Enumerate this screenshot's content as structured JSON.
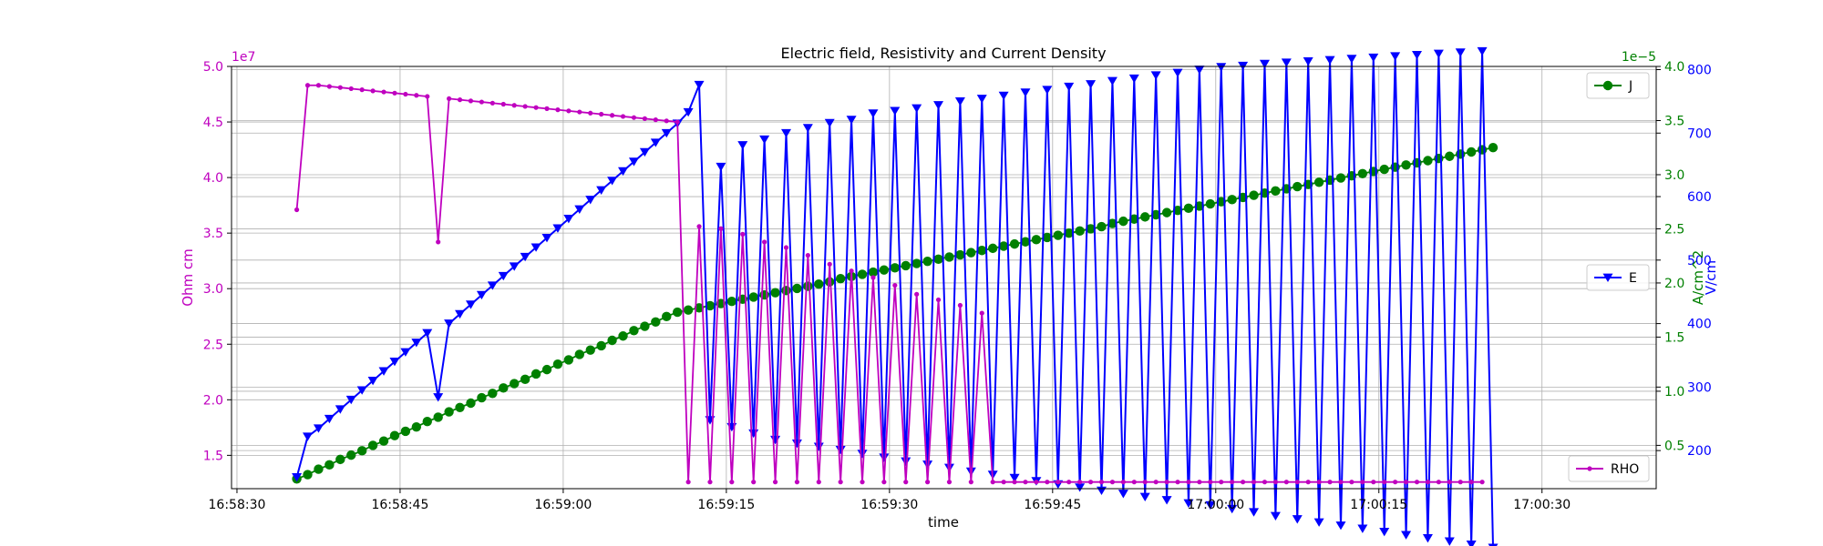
{
  "chart_data": {
    "type": "line",
    "title": "Electric field, Resistivity and Current Density",
    "xlabel": "time",
    "x_ticks": [
      "16:58:30",
      "16:58:45",
      "16:59:00",
      "16:59:15",
      "16:59:30",
      "16:59:45",
      "17:00:00",
      "17:00:15",
      "17:00:30"
    ],
    "x_tick_seconds": [
      0,
      15,
      30,
      45,
      60,
      75,
      90,
      105,
      120
    ],
    "xlim_seconds": [
      -0.5,
      130.5
    ],
    "x_start_seconds": 5.5,
    "x_step_seconds": 1,
    "grid": true,
    "colors": {
      "rho": "#bf00bf",
      "e": "#0000ff",
      "j": "#008000"
    },
    "axes": {
      "rho": {
        "ylabel": "Ohm cm",
        "multiplier": "1e7",
        "ylim": [
          1.2,
          5.0
        ],
        "ticks": [
          1.5,
          2.0,
          2.5,
          3.0,
          3.5,
          4.0,
          4.5,
          5.0
        ],
        "tick_labels": [
          "1.5",
          "2.0",
          "2.5",
          "3.0",
          "3.5",
          "4.0",
          "4.5",
          "5.0"
        ]
      },
      "e": {
        "ylabel": "V/cm",
        "ylim": [
          140,
          805
        ],
        "ticks": [
          200,
          300,
          400,
          500,
          600,
          700,
          800
        ],
        "tick_labels": [
          "200",
          "300",
          "400",
          "500",
          "600",
          "700",
          "800"
        ]
      },
      "j": {
        "ylabel": "A/cm^2",
        "multiplier": "1e−5",
        "ylim": [
          0.1,
          4.0
        ],
        "ticks": [
          0.5,
          1.0,
          1.5,
          2.0,
          2.5,
          3.0,
          3.5,
          4.0
        ],
        "tick_labels": [
          "0.5",
          "1.0",
          "1.5",
          "2.0",
          "2.5",
          "3.0",
          "3.5",
          "4.0"
        ]
      }
    },
    "series": [
      {
        "name": "RHO",
        "axis": "rho",
        "marker": "dot",
        "values": [
          3.71,
          4.83,
          4.83,
          4.82,
          4.81,
          4.8,
          4.79,
          4.78,
          4.77,
          4.76,
          4.75,
          4.74,
          4.73,
          3.42,
          4.71,
          4.7,
          4.69,
          4.68,
          4.67,
          4.66,
          4.65,
          4.64,
          4.63,
          4.62,
          4.61,
          4.6,
          4.59,
          4.58,
          4.57,
          4.56,
          4.55,
          4.54,
          4.53,
          4.52,
          4.51,
          4.5,
          1.26,
          3.56,
          1.26,
          3.54,
          1.26,
          3.49,
          1.26,
          3.42,
          1.26,
          3.37,
          1.26,
          3.3,
          1.26,
          3.22,
          1.26,
          3.16,
          1.26,
          3.1,
          1.26,
          3.03,
          1.26,
          2.95,
          1.26,
          2.9,
          1.26,
          2.85,
          1.26,
          2.78,
          1.26,
          1.26,
          1.26,
          1.26,
          1.26,
          1.26,
          1.26,
          1.26,
          1.26,
          1.26,
          1.26,
          1.26,
          1.26,
          1.26,
          1.26,
          1.26,
          1.26,
          1.26,
          1.26,
          1.26,
          1.26,
          1.26,
          1.26,
          1.26,
          1.26,
          1.26,
          1.26,
          1.26,
          1.26,
          1.26,
          1.26,
          1.26,
          1.26,
          1.26,
          1.26,
          1.26,
          1.26,
          1.26,
          1.26,
          1.26,
          1.26,
          1.26,
          1.26,
          1.26,
          1.26,
          1.26
        ]
      },
      {
        "name": "E",
        "axis": "e",
        "marker": "triangle-down",
        "values": [
          158,
          222,
          235,
          250,
          265,
          280,
          295,
          310,
          325,
          340,
          355,
          370,
          385,
          284,
          400,
          415,
          430,
          445,
          460,
          475,
          490,
          505,
          520,
          535,
          550,
          565,
          580,
          595,
          610,
          625,
          640,
          655,
          670,
          685,
          700,
          715,
          733,
          776,
          248,
          647,
          237,
          681,
          227,
          690,
          217,
          700,
          211,
          708,
          206,
          716,
          201,
          721,
          195,
          731,
          189,
          735,
          183,
          739,
          178,
          744,
          173,
          750,
          167,
          754,
          162,
          759,
          157,
          764,
          152,
          768,
          147,
          773,
          142,
          777,
          137,
          782,
          132,
          786,
          127,
          791,
          122,
          795,
          117,
          800,
          114,
          804,
          108,
          806,
          103,
          809,
          97,
          811,
          92,
          813,
          87,
          815,
          82,
          817,
          77,
          819,
          72,
          821,
          67,
          823,
          62,
          825,
          57,
          827,
          52,
          829,
          47
        ]
      },
      {
        "name": "J",
        "axis": "j",
        "marker": "circle",
        "values": [
          0.19,
          0.23,
          0.28,
          0.32,
          0.37,
          0.41,
          0.45,
          0.5,
          0.54,
          0.59,
          0.63,
          0.67,
          0.72,
          0.76,
          0.81,
          0.85,
          0.89,
          0.94,
          0.98,
          1.03,
          1.07,
          1.11,
          1.16,
          1.2,
          1.25,
          1.29,
          1.34,
          1.38,
          1.42,
          1.47,
          1.51,
          1.56,
          1.6,
          1.64,
          1.69,
          1.73,
          1.75,
          1.77,
          1.79,
          1.81,
          1.83,
          1.85,
          1.87,
          1.89,
          1.91,
          1.93,
          1.95,
          1.97,
          1.99,
          2.01,
          2.04,
          2.06,
          2.08,
          2.1,
          2.12,
          2.14,
          2.16,
          2.18,
          2.2,
          2.22,
          2.24,
          2.26,
          2.28,
          2.3,
          2.32,
          2.34,
          2.36,
          2.38,
          2.4,
          2.42,
          2.44,
          2.46,
          2.48,
          2.5,
          2.52,
          2.55,
          2.57,
          2.59,
          2.61,
          2.63,
          2.65,
          2.67,
          2.69,
          2.71,
          2.73,
          2.75,
          2.77,
          2.79,
          2.81,
          2.83,
          2.85,
          2.87,
          2.89,
          2.91,
          2.93,
          2.95,
          2.97,
          2.99,
          3.01,
          3.03,
          3.05,
          3.07,
          3.09,
          3.11,
          3.13,
          3.15,
          3.17,
          3.19,
          3.21,
          3.23,
          3.25
        ]
      }
    ],
    "legends": [
      {
        "series": "J",
        "label": "J",
        "placement": "upper-right"
      },
      {
        "series": "E",
        "label": "E",
        "placement": "center-right"
      },
      {
        "series": "RHO",
        "label": "RHO",
        "placement": "lower-right"
      }
    ]
  }
}
